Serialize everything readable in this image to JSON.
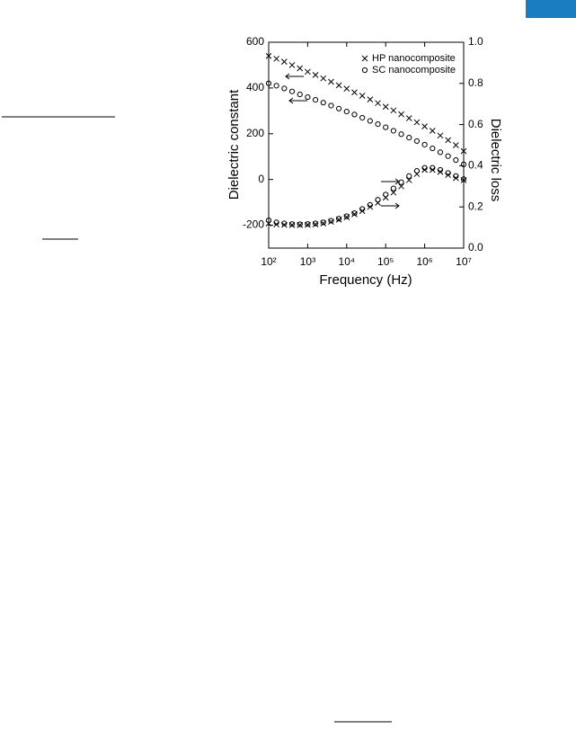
{
  "chart_data": {
    "type": "scatter",
    "x_label": "Frequency (Hz)",
    "y_label": "Dielectric constant",
    "y2_label": "Dielectric loss",
    "x_log": true,
    "xlim": [
      100,
      10000000
    ],
    "xticks": [
      {
        "value": 100,
        "label": "10²"
      },
      {
        "value": 1000,
        "label": "10³"
      },
      {
        "value": 10000,
        "label": "10⁴"
      },
      {
        "value": 100000,
        "label": "10⁵"
      },
      {
        "value": 1000000,
        "label": "10⁶"
      },
      {
        "value": 10000000,
        "label": "10⁷"
      }
    ],
    "ylim": [
      -300,
      600
    ],
    "yticks": [
      -200,
      0,
      200,
      400,
      600
    ],
    "y2lim": [
      0,
      1
    ],
    "y2ticks": [
      {
        "value": 0,
        "label": "0.0"
      },
      {
        "value": 0.2,
        "label": "0.2"
      },
      {
        "value": 0.4,
        "label": "0.4"
      },
      {
        "value": 0.6,
        "label": "0.6"
      },
      {
        "value": 0.8,
        "label": "0.8"
      },
      {
        "value": 1,
        "label": "1.0"
      }
    ],
    "legend": "upper right",
    "color": "#000000",
    "x": [
      100,
      158,
      251,
      398,
      631,
      1000,
      1585,
      2512,
      3981,
      6310,
      10000,
      15849,
      25119,
      39811,
      63096,
      100000,
      158489,
      251189,
      398107,
      630957,
      1000000,
      1584893,
      2511886,
      3981072,
      6309573,
      10000000
    ],
    "series": [
      {
        "name": "HP nanocomposite",
        "marker": "x",
        "values": [
          540,
          528,
          515,
          500,
          486,
          471,
          457,
          442,
          427,
          412,
          397,
          381,
          366,
          350,
          334,
          318,
          302,
          285,
          268,
          250,
          232,
          213,
          192,
          172,
          150,
          124
        ],
        "y2_values": [
          0.12,
          0.115,
          0.113,
          0.112,
          0.112,
          0.113,
          0.115,
          0.12,
          0.128,
          0.138,
          0.15,
          0.165,
          0.18,
          0.2,
          0.22,
          0.245,
          0.27,
          0.3,
          0.33,
          0.36,
          0.38,
          0.38,
          0.37,
          0.355,
          0.34,
          0.33
        ]
      },
      {
        "name": "SC nanocomposite",
        "marker": "o",
        "values": [
          420,
          410,
          398,
          385,
          372,
          360,
          348,
          336,
          323,
          310,
          297,
          284,
          270,
          256,
          242,
          228,
          213,
          198,
          183,
          168,
          152,
          136,
          119,
          102,
          85,
          66
        ],
        "y2_values": [
          0.135,
          0.125,
          0.12,
          0.117,
          0.116,
          0.117,
          0.12,
          0.125,
          0.133,
          0.143,
          0.155,
          0.17,
          0.19,
          0.21,
          0.235,
          0.26,
          0.29,
          0.32,
          0.35,
          0.375,
          0.39,
          0.39,
          0.38,
          0.365,
          0.35,
          0.335
        ]
      }
    ]
  }
}
